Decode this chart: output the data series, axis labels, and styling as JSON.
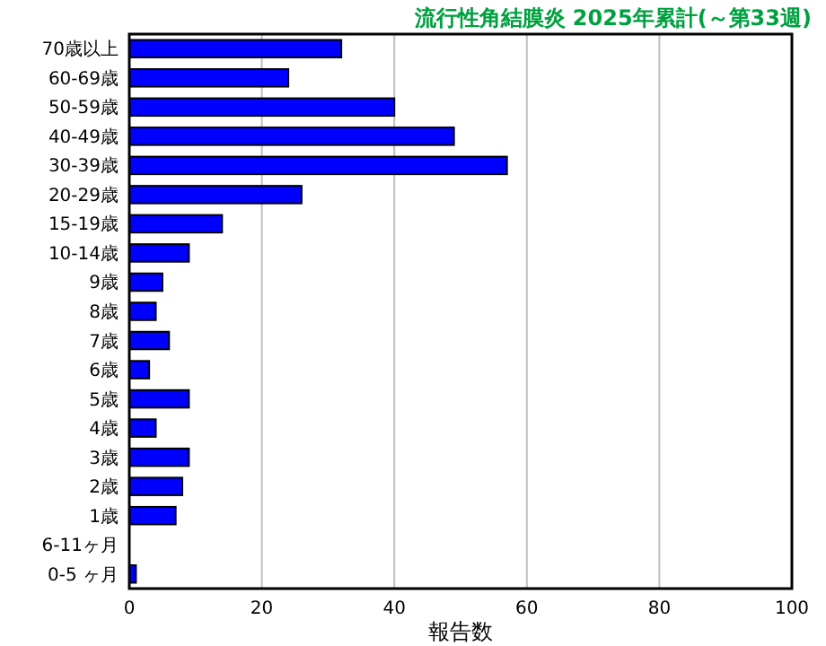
{
  "chart_data": {
    "type": "bar",
    "orientation": "horizontal",
    "title": "流行性角結膜炎 2025年累計(～第33週)",
    "xlabel": "報告数",
    "categories": [
      "70歳以上",
      "60-69歳",
      "50-59歳",
      "40-49歳",
      "30-39歳",
      "20-29歳",
      "15-19歳",
      "10-14歳",
      "9歳",
      "8歳",
      "7歳",
      "6歳",
      "5歳",
      "4歳",
      "3歳",
      "2歳",
      "1歳",
      "6-11ヶ月",
      "0-5 ヶ月"
    ],
    "values": [
      32,
      24,
      40,
      49,
      57,
      26,
      14,
      9,
      5,
      4,
      6,
      3,
      9,
      4,
      9,
      8,
      7,
      0,
      1
    ],
    "color": "#0000ff",
    "xlim": [
      0,
      100
    ],
    "xticks": [
      0,
      20,
      40,
      60,
      80,
      100
    ],
    "grid": "x"
  }
}
